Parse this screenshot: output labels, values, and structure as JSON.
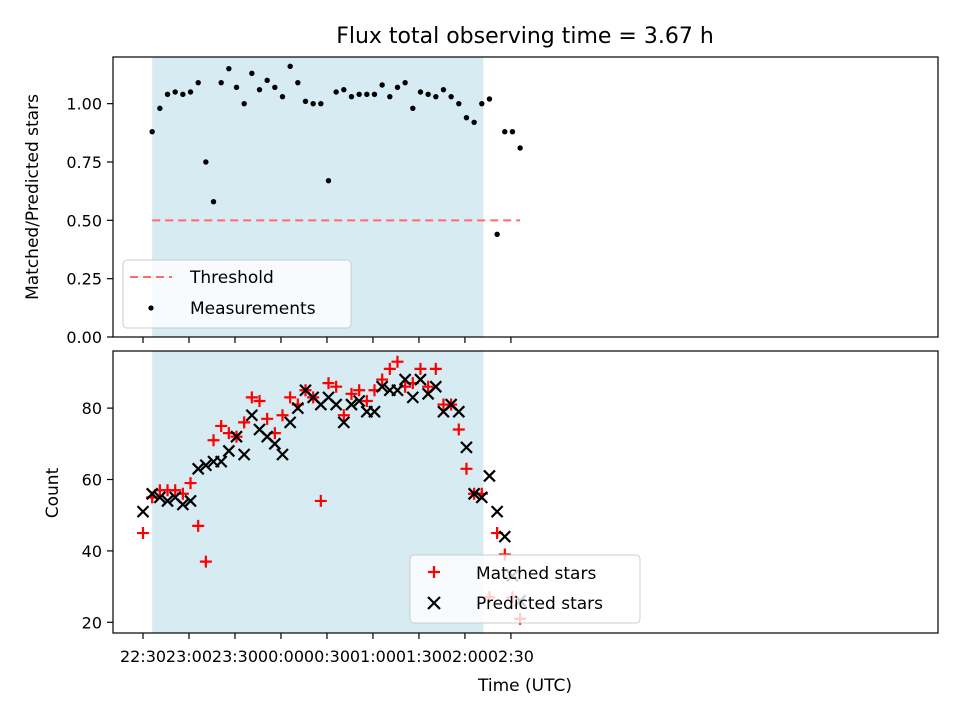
{
  "chart_data": [
    {
      "type": "scatter",
      "title": "Flux total observing time = 3.67 h",
      "ylabel": "Matched/Predicted stars",
      "xlabel": "",
      "ylim": [
        0,
        1.2
      ],
      "y_ticks": [
        "0.00",
        "0.25",
        "0.50",
        "0.75",
        "1.00"
      ],
      "y_tick_values": [
        0,
        0.25,
        0.5,
        0.75,
        1.0
      ],
      "shaded_span": [
        "22:36",
        "02:12"
      ],
      "threshold": {
        "name": "Threshold",
        "y": 0.5,
        "x_range": [
          "22:36",
          "02:36"
        ],
        "color": "#ff6b6b",
        "style": "dashed"
      },
      "series": [
        {
          "name": "Measurements",
          "color": "#000000",
          "marker": "dot",
          "x": [
            "22:36",
            "22:41",
            "22:46",
            "22:51",
            "22:56",
            "23:01",
            "23:06",
            "23:11",
            "23:16",
            "23:21",
            "23:26",
            "23:31",
            "23:36",
            "23:41",
            "23:46",
            "23:51",
            "23:56",
            "00:01",
            "00:06",
            "00:11",
            "00:16",
            "00:21",
            "00:26",
            "00:31",
            "00:36",
            "00:41",
            "00:46",
            "00:51",
            "00:56",
            "01:01",
            "01:06",
            "01:11",
            "01:16",
            "01:21",
            "01:26",
            "01:31",
            "01:36",
            "01:41",
            "01:46",
            "01:51",
            "01:56",
            "02:01",
            "02:06",
            "02:11",
            "02:16",
            "02:21",
            "02:26",
            "02:31",
            "02:36"
          ],
          "y": [
            0.88,
            0.98,
            1.04,
            1.05,
            1.04,
            1.05,
            1.09,
            0.75,
            0.58,
            1.09,
            1.15,
            1.07,
            1.0,
            1.13,
            1.06,
            1.1,
            1.07,
            1.03,
            1.16,
            1.09,
            1.01,
            1.0,
            1.0,
            0.67,
            1.05,
            1.06,
            1.03,
            1.04,
            1.04,
            1.04,
            1.08,
            1.03,
            1.07,
            1.09,
            0.98,
            1.05,
            1.04,
            1.03,
            1.06,
            1.03,
            1.0,
            0.94,
            0.92,
            1.0,
            1.02,
            0.44,
            0.88,
            0.88,
            0.81
          ]
        }
      ],
      "legend": {
        "placement": "lower-left",
        "entries": [
          "Threshold",
          "Measurements"
        ]
      }
    },
    {
      "type": "scatter",
      "title": "",
      "ylabel": "Count",
      "xlabel": "Time (UTC)",
      "ylim": [
        17,
        96
      ],
      "y_ticks": [
        "20",
        "40",
        "60",
        "80"
      ],
      "y_tick_values": [
        20,
        40,
        60,
        80
      ],
      "x_ticks": [
        "22:30",
        "23:00",
        "23:30",
        "00:00",
        "00:30",
        "01:00",
        "01:30",
        "02:00",
        "02:30"
      ],
      "shaded_span": [
        "22:36",
        "02:12"
      ],
      "series": [
        {
          "name": "Matched stars",
          "color": "#ff0000",
          "marker": "plus",
          "x": [
            "22:30",
            "22:36",
            "22:41",
            "22:46",
            "22:51",
            "22:56",
            "23:01",
            "23:06",
            "23:11",
            "23:16",
            "23:21",
            "23:26",
            "23:31",
            "23:36",
            "23:41",
            "23:46",
            "23:51",
            "23:56",
            "00:01",
            "00:06",
            "00:11",
            "00:16",
            "00:21",
            "00:26",
            "00:31",
            "00:36",
            "00:41",
            "00:46",
            "00:51",
            "00:56",
            "01:01",
            "01:06",
            "01:11",
            "01:16",
            "01:21",
            "01:26",
            "01:31",
            "01:36",
            "01:41",
            "01:46",
            "01:51",
            "01:56",
            "02:01",
            "02:06",
            "02:11",
            "02:16",
            "02:21",
            "02:26",
            "02:31",
            "02:36"
          ],
          "y": [
            45,
            55,
            57,
            57,
            57,
            56,
            59,
            47,
            37,
            71,
            75,
            73,
            72,
            76,
            83,
            82,
            77,
            73,
            78,
            83,
            81,
            85,
            83,
            54,
            87,
            86,
            78,
            84,
            85,
            82,
            85,
            88,
            91,
            93,
            86,
            87,
            91,
            86,
            91,
            81,
            81,
            74,
            63,
            56,
            56,
            27,
            45,
            39,
            27,
            21
          ]
        },
        {
          "name": "Predicted stars",
          "color": "#000000",
          "marker": "x",
          "x": [
            "22:30",
            "22:36",
            "22:41",
            "22:46",
            "22:51",
            "22:56",
            "23:01",
            "23:06",
            "23:11",
            "23:16",
            "23:21",
            "23:26",
            "23:31",
            "23:36",
            "23:41",
            "23:46",
            "23:51",
            "23:56",
            "00:01",
            "00:06",
            "00:11",
            "00:16",
            "00:21",
            "00:26",
            "00:31",
            "00:36",
            "00:41",
            "00:46",
            "00:51",
            "00:56",
            "01:01",
            "01:06",
            "01:11",
            "01:16",
            "01:21",
            "01:26",
            "01:31",
            "01:36",
            "01:41",
            "01:46",
            "01:51",
            "01:56",
            "02:01",
            "02:06",
            "02:11",
            "02:16",
            "02:21",
            "02:26",
            "02:31",
            "02:36"
          ],
          "y": [
            51,
            56,
            55,
            54,
            55,
            53,
            54,
            63,
            64,
            65,
            65,
            68,
            72,
            67,
            78,
            74,
            72,
            70,
            67,
            76,
            80,
            85,
            83,
            81,
            83,
            81,
            76,
            81,
            82,
            79,
            79,
            86,
            85,
            85,
            88,
            83,
            88,
            84,
            86,
            79,
            81,
            79,
            69,
            56,
            55,
            61,
            51,
            44,
            33,
            26
          ]
        }
      ],
      "legend": {
        "placement": "lower-center",
        "entries": [
          "Matched stars",
          "Predicted stars"
        ]
      }
    }
  ]
}
